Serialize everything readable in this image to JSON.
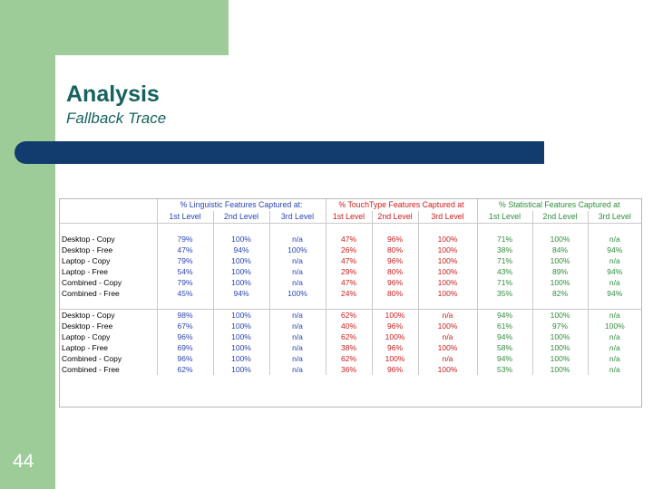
{
  "slide": {
    "title": "Analysis",
    "subtitle": "Fallback Trace",
    "number": "44"
  },
  "table": {
    "groups": [
      "% Linguistic Features Captured at:",
      "% TouchType Features Captured at",
      "% Statistical Features Captured at"
    ],
    "level_labels": [
      "1st Level",
      "2nd Level",
      "3rd Level",
      "1st Level",
      "2nd Level",
      "3rd Level",
      "1st Level",
      "2nd Level",
      "3rd Level"
    ],
    "block1": [
      {
        "label": "Desktop - Copy",
        "values": [
          "79%",
          "100%",
          "n/a",
          "47%",
          "96%",
          "100%",
          "71%",
          "100%",
          "n/a"
        ]
      },
      {
        "label": "Desktop - Free",
        "values": [
          "47%",
          "94%",
          "100%",
          "26%",
          "80%",
          "100%",
          "38%",
          "84%",
          "94%"
        ]
      },
      {
        "label": "Laptop - Copy",
        "values": [
          "79%",
          "100%",
          "n/a",
          "47%",
          "96%",
          "100%",
          "71%",
          "100%",
          "n/a"
        ]
      },
      {
        "label": "Laptop - Free",
        "values": [
          "54%",
          "100%",
          "n/a",
          "29%",
          "80%",
          "100%",
          "43%",
          "89%",
          "94%"
        ]
      },
      {
        "label": "Combined - Copy",
        "values": [
          "79%",
          "100%",
          "n/a",
          "47%",
          "96%",
          "100%",
          "71%",
          "100%",
          "n/a"
        ]
      },
      {
        "label": "Combined - Free",
        "values": [
          "45%",
          "94%",
          "100%",
          "24%",
          "80%",
          "100%",
          "35%",
          "82%",
          "94%"
        ]
      }
    ],
    "block2": [
      {
        "label": "Desktop - Copy",
        "values": [
          "98%",
          "100%",
          "n/a",
          "62%",
          "100%",
          "n/a",
          "94%",
          "100%",
          "n/a"
        ]
      },
      {
        "label": "Desktop - Free",
        "values": [
          "67%",
          "100%",
          "n/a",
          "40%",
          "96%",
          "100%",
          "61%",
          "97%",
          "100%"
        ]
      },
      {
        "label": "Laptop - Copy",
        "values": [
          "96%",
          "100%",
          "n/a",
          "62%",
          "100%",
          "n/a",
          "94%",
          "100%",
          "n/a"
        ]
      },
      {
        "label": "Laptop - Free",
        "values": [
          "69%",
          "100%",
          "n/a",
          "38%",
          "96%",
          "100%",
          "58%",
          "100%",
          "n/a"
        ]
      },
      {
        "label": "Combined - Copy",
        "values": [
          "96%",
          "100%",
          "n/a",
          "62%",
          "100%",
          "n/a",
          "94%",
          "100%",
          "n/a"
        ]
      },
      {
        "label": "Combined - Free",
        "values": [
          "62%",
          "100%",
          "n/a",
          "36%",
          "96%",
          "100%",
          "53%",
          "100%",
          "n/a"
        ]
      }
    ]
  }
}
